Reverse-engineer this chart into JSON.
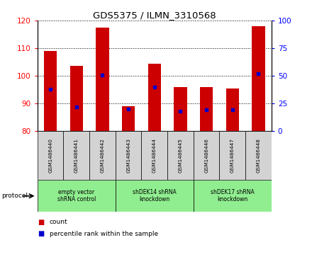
{
  "title": "GDS5375 / ILMN_3310568",
  "samples": [
    "GSM1486440",
    "GSM1486441",
    "GSM1486442",
    "GSM1486443",
    "GSM1486444",
    "GSM1486445",
    "GSM1486446",
    "GSM1486447",
    "GSM1486448"
  ],
  "counts": [
    109,
    103.5,
    117.5,
    89,
    104.5,
    96,
    96,
    95.5,
    118
  ],
  "percentile_ranks": [
    38,
    22,
    51,
    20,
    40,
    18,
    19,
    19,
    52
  ],
  "ylim_left": [
    80,
    120
  ],
  "ylim_right": [
    0,
    100
  ],
  "yticks_left": [
    80,
    90,
    100,
    110,
    120
  ],
  "yticks_right": [
    0,
    25,
    50,
    75,
    100
  ],
  "bar_color": "#CC0000",
  "blue_color": "#0000CC",
  "bar_bottom": 80,
  "protocol_groups": [
    {
      "label": "empty vector\nshRNA control",
      "start": 0,
      "end": 3,
      "color": "#90EE90"
    },
    {
      "label": "shDEK14 shRNA\nknockdown",
      "start": 3,
      "end": 6,
      "color": "#90EE90"
    },
    {
      "label": "shDEK17 shRNA\nknockdown",
      "start": 6,
      "end": 9,
      "color": "#90EE90"
    }
  ],
  "legend_count_label": "count",
  "legend_pct_label": "percentile rank within the sample",
  "protocol_label": "protocol",
  "tick_bg_color": "#D3D3D3",
  "bar_width": 0.5
}
